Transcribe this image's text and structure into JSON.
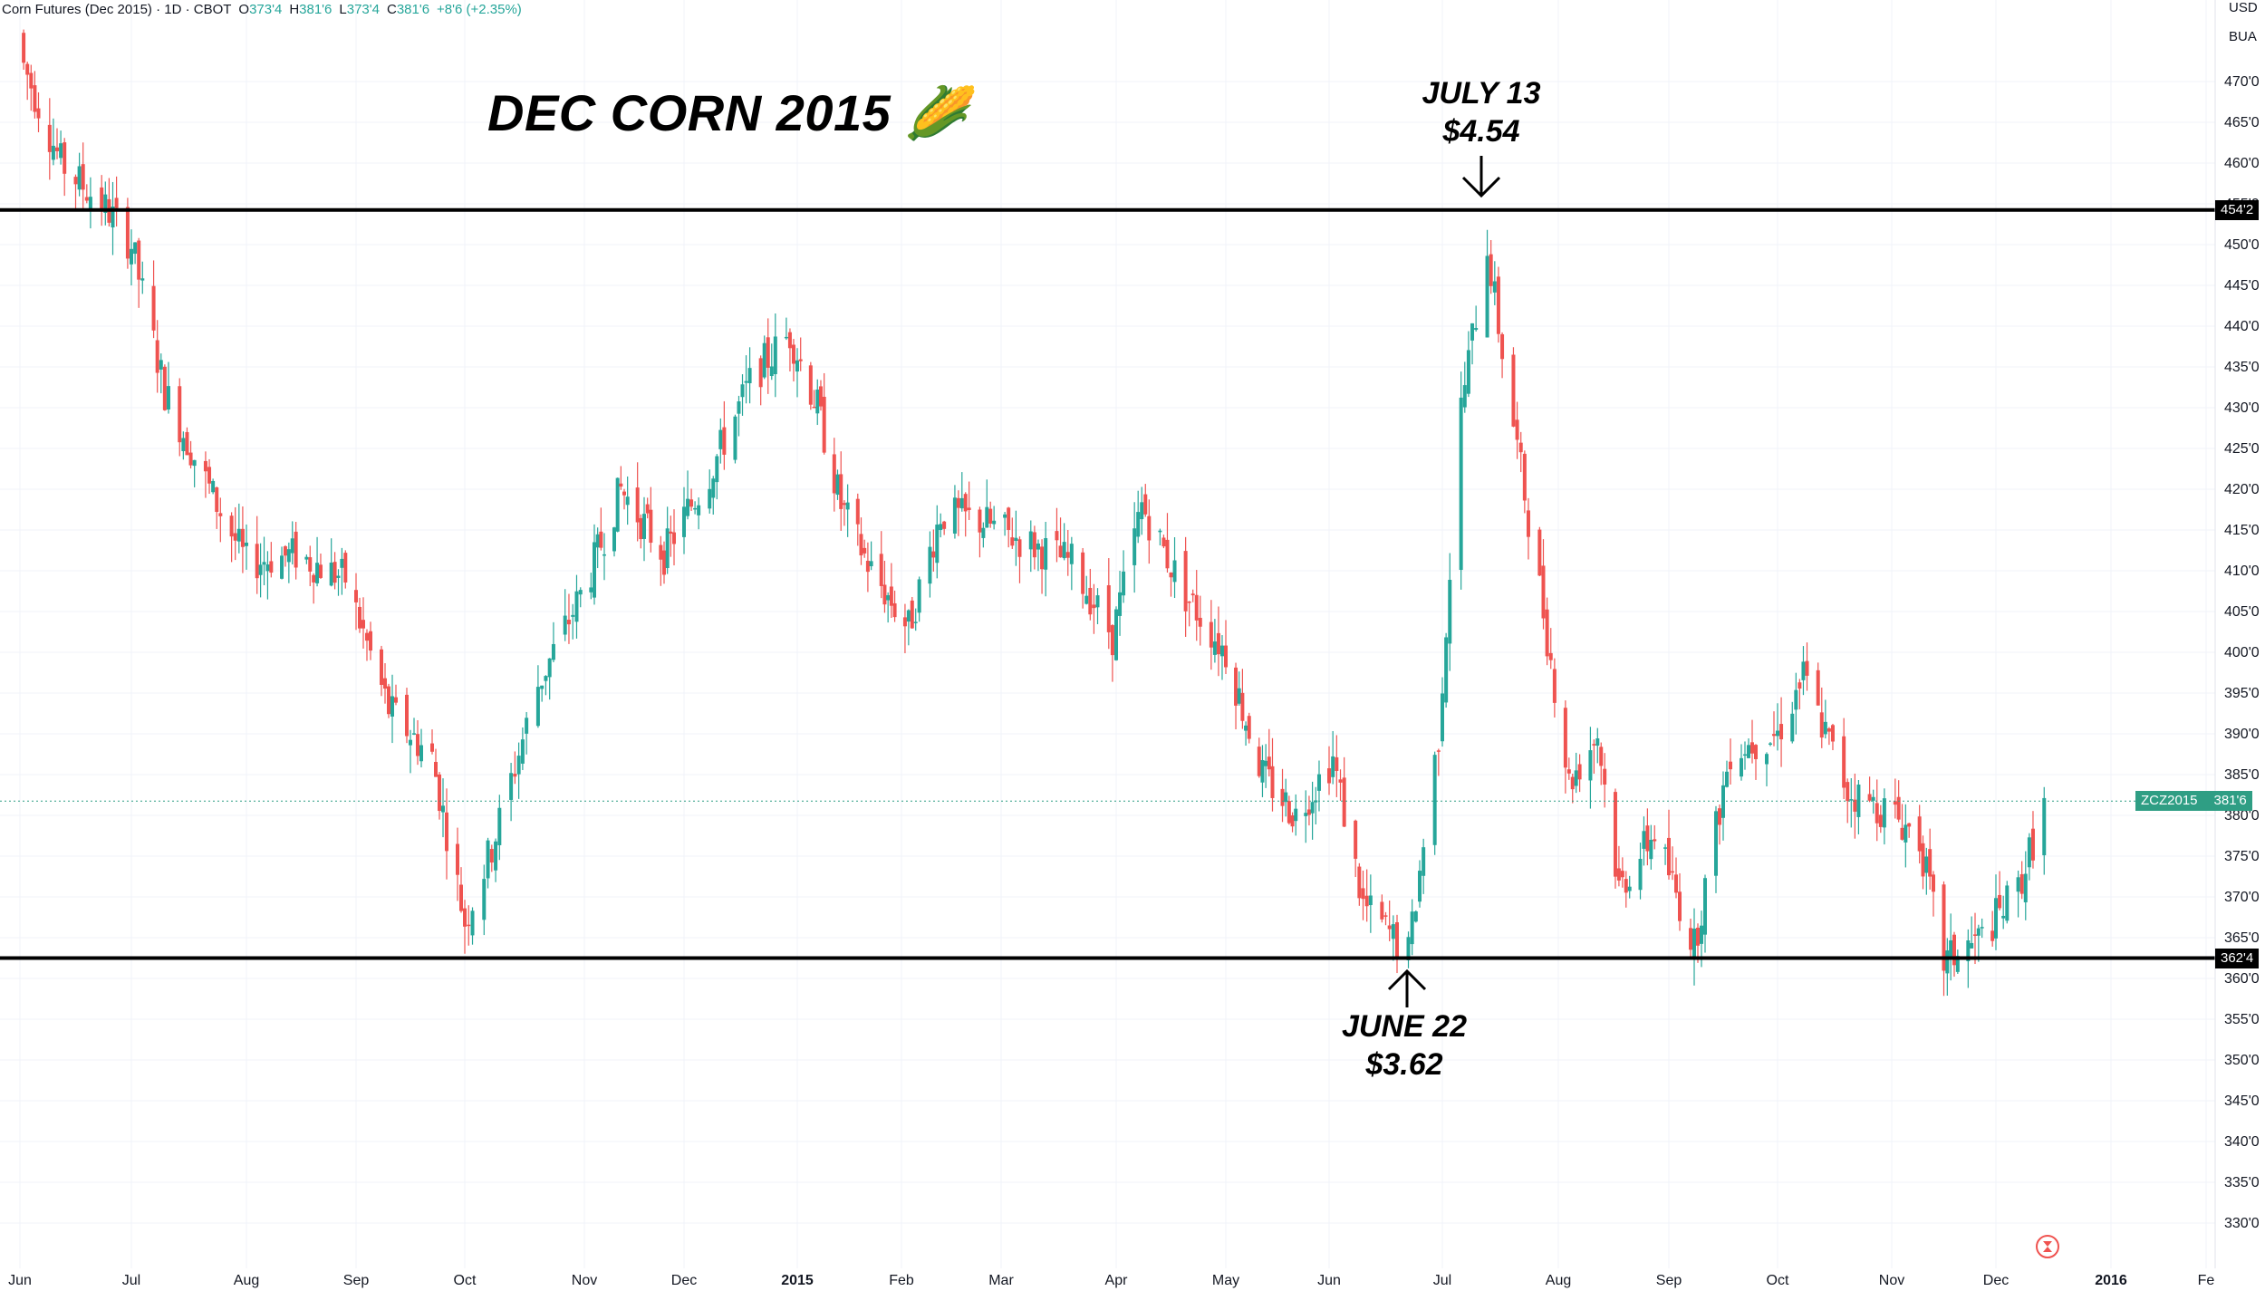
{
  "header": {
    "symbol": "Corn Futures (Dec 2015) · 1D · CBOT",
    "open_key": "O",
    "open": "373'4",
    "high_key": "H",
    "high": "381'6",
    "low_key": "L",
    "low": "373'4",
    "close_key": "C",
    "close": "381'6",
    "change": "+8'6 (+2.35%)"
  },
  "currency": "USD",
  "unit": "BUA",
  "title": "DEC CORN 2015 🌽",
  "annotations": {
    "high": {
      "line1": "JULY 13",
      "line2": "$4.54"
    },
    "low": {
      "line1": "JUNE 22",
      "line2": "$3.62"
    }
  },
  "last_price": {
    "symbol": "ZCZ2015",
    "value": "381'6"
  },
  "horizontal_lines": {
    "upper": "454'2",
    "lower": "362'4"
  },
  "colors": {
    "up": "#26a69a",
    "down": "#ef5350",
    "line": "#000000",
    "grid": "#f0f3fa"
  },
  "chart_data": {
    "type": "candlestick",
    "title": "DEC CORN 2015",
    "ylim": [
      328,
      481
    ],
    "y_ticks": [
      "330'0",
      "335'0",
      "340'0",
      "345'0",
      "350'0",
      "355'0",
      "360'0",
      "365'0",
      "370'0",
      "375'0",
      "380'0",
      "385'0",
      "390'0",
      "395'0",
      "400'0",
      "405'0",
      "410'0",
      "415'0",
      "420'0",
      "425'0",
      "430'0",
      "435'0",
      "440'0",
      "445'0",
      "450'0",
      "455'0",
      "460'0",
      "465'0",
      "470'0"
    ],
    "x_ticks": [
      "Jun",
      "Jul",
      "Aug",
      "Sep",
      "Oct",
      "Nov",
      "Dec",
      "2015",
      "Feb",
      "Mar",
      "Apr",
      "May",
      "Jun",
      "Jul",
      "Aug",
      "Sep",
      "Oct",
      "Nov",
      "Dec",
      "2016",
      "Fe"
    ],
    "price_path": [
      [
        "2014-06-02",
        472
      ],
      [
        "2014-06-12",
        460
      ],
      [
        "2014-06-25",
        454
      ],
      [
        "2014-07-01",
        450
      ],
      [
        "2014-07-10",
        432
      ],
      [
        "2014-07-22",
        420
      ],
      [
        "2014-08-01",
        411
      ],
      [
        "2014-08-15",
        412
      ],
      [
        "2014-08-29",
        409
      ],
      [
        "2014-09-10",
        393
      ],
      [
        "2014-09-22",
        387
      ],
      [
        "2014-10-01",
        367
      ],
      [
        "2014-10-08",
        376
      ],
      [
        "2014-10-20",
        396
      ],
      [
        "2014-11-03",
        410
      ],
      [
        "2014-11-12",
        420
      ],
      [
        "2014-11-25",
        412
      ],
      [
        "2014-12-08",
        422
      ],
      [
        "2014-12-20",
        434
      ],
      [
        "2014-12-30",
        439
      ],
      [
        "2015-01-07",
        430
      ],
      [
        "2015-01-14",
        418
      ],
      [
        "2015-01-23",
        410
      ],
      [
        "2015-02-03",
        403
      ],
      [
        "2015-02-12",
        417
      ],
      [
        "2015-02-24",
        416
      ],
      [
        "2015-03-10",
        413
      ],
      [
        "2015-03-20",
        411
      ],
      [
        "2015-03-31",
        402
      ],
      [
        "2015-04-08",
        418
      ],
      [
        "2015-04-20",
        407
      ],
      [
        "2015-05-01",
        400
      ],
      [
        "2015-05-12",
        385
      ],
      [
        "2015-05-22",
        380
      ],
      [
        "2015-06-02",
        387
      ],
      [
        "2015-06-10",
        369
      ],
      [
        "2015-06-22",
        363
      ],
      [
        "2015-06-30",
        390
      ],
      [
        "2015-07-06",
        430
      ],
      [
        "2015-07-13",
        450
      ],
      [
        "2015-07-16",
        440
      ],
      [
        "2015-07-20",
        428
      ],
      [
        "2015-07-28",
        405
      ],
      [
        "2015-08-04",
        384
      ],
      [
        "2015-08-12",
        390
      ],
      [
        "2015-08-18",
        371
      ],
      [
        "2015-08-28",
        378
      ],
      [
        "2015-09-08",
        364
      ],
      [
        "2015-09-18",
        388
      ],
      [
        "2015-10-01",
        390
      ],
      [
        "2015-10-08",
        397
      ],
      [
        "2015-10-20",
        383
      ],
      [
        "2015-11-02",
        380
      ],
      [
        "2015-11-09",
        377
      ],
      [
        "2015-11-16",
        362
      ],
      [
        "2015-11-27",
        365
      ],
      [
        "2015-12-07",
        371
      ],
      [
        "2015-12-14",
        381
      ]
    ]
  }
}
